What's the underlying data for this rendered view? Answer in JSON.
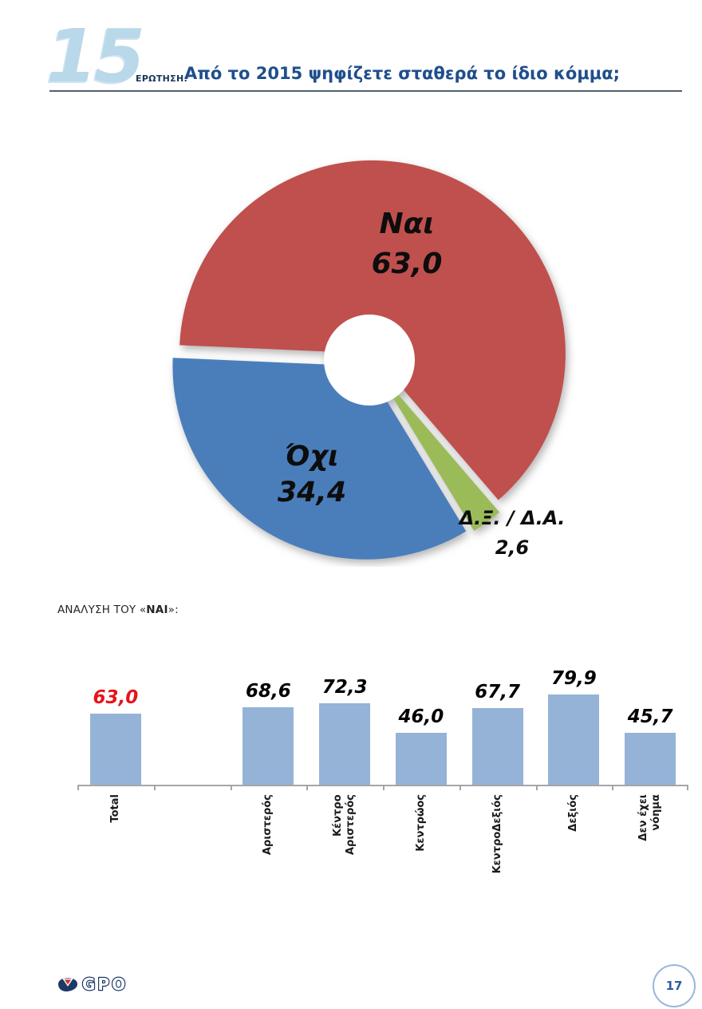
{
  "header": {
    "question_number": "15",
    "question_label": "ΕΡΩΤΗΣΗ:",
    "question_text": "Από το 2015 ψηφίζετε σταθερά το ίδιο κόμμα;"
  },
  "analysis": {
    "prefix": "ΑΝΑΛΥΣΗ ΤΟΥ «",
    "bold": "ΝΑΙ",
    "suffix": "»:"
  },
  "chart_data": [
    {
      "type": "pie",
      "donut": true,
      "start_angle_clockwise_from_top": 272.5,
      "direction": "clockwise",
      "slices": [
        {
          "label": "Ναι",
          "value": 63.0,
          "display": "63,0",
          "color": "#C0504D"
        },
        {
          "label": "Δ.Ξ. / Δ.Α.",
          "value": 2.6,
          "display": "2,6",
          "color": "#9BBB59"
        },
        {
          "label": "Όχι",
          "value": 34.4,
          "display": "34,4",
          "color": "#4A7EBB"
        }
      ]
    },
    {
      "type": "bar",
      "title": "",
      "categories": [
        "Total",
        "",
        "Αριστερός",
        "Κέντρο\nΑριστερός",
        "Κεντρώος",
        "ΚεντροΔεξιός",
        "Δεξιός",
        "Δεν έχει\nνόημα"
      ],
      "values": [
        63.0,
        null,
        68.6,
        72.3,
        46.0,
        67.7,
        79.9,
        45.7
      ],
      "display_values": [
        "63,0",
        "",
        "68,6",
        "72,3",
        "46,0",
        "67,7",
        "79,9",
        "45,7"
      ],
      "bar_color": "#95B3D7",
      "value_label_colors": [
        "#E8131B",
        "",
        "#000000",
        "#000000",
        "#000000",
        "#000000",
        "#000000",
        "#000000"
      ],
      "ylim": [
        0,
        90
      ],
      "grid": false,
      "legend": false
    }
  ],
  "footer": {
    "logo_text": "GPO",
    "page_number": "17"
  }
}
